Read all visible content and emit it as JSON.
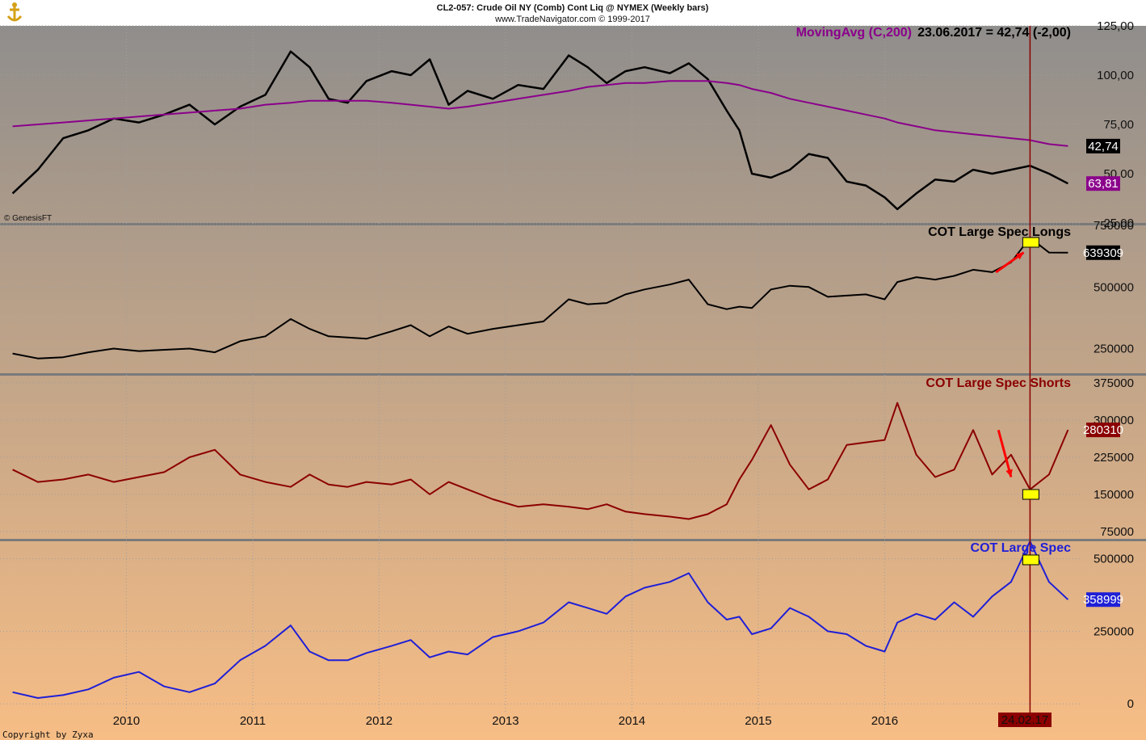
{
  "header": {
    "title": "CL2-057:  Crude Oil NY (Comb) Cont Liq @ NYMEX  (Weekly bars)",
    "subtitle": "www.TradeNavigator.com © 1999-2017"
  },
  "ma_label": "MovingAvg (C,200)",
  "ma_value_text": "23.06.2017 = 42,74 (-2,00)",
  "credit": "© GenesisFT",
  "copyright": "Copyright by Zyxa",
  "vline_date": "24.02.17",
  "colors": {
    "bg_top": "#8c8c8c",
    "bg_bottom": "#f7bd85",
    "price": "#000000",
    "ma": "#8b008b",
    "longs": "#000000",
    "shorts": "#8b0000",
    "net": "#1f1fd6",
    "vline": "#8b0000",
    "arrow": "#ff0000",
    "marker": "#ffff00"
  },
  "chart_data": [
    {
      "type": "line",
      "title": "CL2-057:  Crude Oil NY (Comb) Cont Liq @ NYMEX  (Weekly bars)",
      "subtitle": "www.TradeNavigator.com © 1999-2017",
      "x": [
        2009.1,
        2009.3,
        2009.5,
        2009.7,
        2009.9,
        2010.1,
        2010.3,
        2010.5,
        2010.7,
        2010.9,
        2011.1,
        2011.3,
        2011.45,
        2011.6,
        2011.75,
        2011.9,
        2012.1,
        2012.25,
        2012.4,
        2012.55,
        2012.7,
        2012.9,
        2013.1,
        2013.3,
        2013.5,
        2013.65,
        2013.8,
        2013.95,
        2014.1,
        2014.3,
        2014.45,
        2014.6,
        2014.75,
        2014.85,
        2014.95,
        2015.1,
        2015.25,
        2015.4,
        2015.55,
        2015.7,
        2015.85,
        2016.0,
        2016.1,
        2016.25,
        2016.4,
        2016.55,
        2016.7,
        2016.85,
        2017.0,
        2017.15,
        2017.3,
        2017.45
      ],
      "series": [
        {
          "values": [
            40,
            52,
            68,
            72,
            78,
            76,
            80,
            85,
            75,
            84,
            90,
            112,
            104,
            88,
            86,
            97,
            102,
            100,
            108,
            85,
            92,
            88,
            95,
            93,
            110,
            104,
            96,
            102,
            104,
            101,
            106,
            98,
            82,
            72,
            50,
            48,
            52,
            60,
            58,
            46,
            44,
            38,
            32,
            40,
            47,
            46,
            52,
            50,
            52,
            54,
            50,
            45
          ]
        },
        {
          "values": [
            74,
            75,
            76,
            77,
            78,
            79,
            80,
            81,
            82,
            83,
            85,
            86,
            87,
            87,
            87,
            87,
            86,
            85,
            84,
            83,
            84,
            86,
            88,
            90,
            92,
            94,
            95,
            96,
            96,
            97,
            97,
            97,
            96,
            95,
            93,
            91,
            88,
            86,
            84,
            82,
            80,
            78,
            76,
            74,
            72,
            71,
            70,
            69,
            68,
            67,
            65,
            64
          ]
        }
      ],
      "ylim": [
        25,
        125
      ],
      "yticks": [
        "125,00",
        "100,00",
        "75,00",
        "50,00",
        "25,00"
      ],
      "last_labels": [
        "63,81",
        "42,74"
      ]
    },
    {
      "type": "line",
      "title": "COT Large Spec Longs",
      "x": [
        2009.1,
        2009.3,
        2009.5,
        2009.7,
        2009.9,
        2010.1,
        2010.3,
        2010.5,
        2010.7,
        2010.9,
        2011.1,
        2011.3,
        2011.45,
        2011.6,
        2011.75,
        2011.9,
        2012.1,
        2012.25,
        2012.4,
        2012.55,
        2012.7,
        2012.9,
        2013.1,
        2013.3,
        2013.5,
        2013.65,
        2013.8,
        2013.95,
        2014.1,
        2014.3,
        2014.45,
        2014.6,
        2014.75,
        2014.85,
        2014.95,
        2015.1,
        2015.25,
        2015.4,
        2015.55,
        2015.7,
        2015.85,
        2016.0,
        2016.1,
        2016.25,
        2016.4,
        2016.55,
        2016.7,
        2016.85,
        2017.0,
        2017.15,
        2017.3,
        2017.45
      ],
      "series": [
        {
          "values": [
            230000,
            210000,
            215000,
            235000,
            250000,
            240000,
            245000,
            250000,
            235000,
            280000,
            300000,
            370000,
            330000,
            300000,
            295000,
            290000,
            320000,
            345000,
            300000,
            340000,
            310000,
            330000,
            345000,
            360000,
            450000,
            430000,
            435000,
            470000,
            490000,
            510000,
            530000,
            430000,
            410000,
            420000,
            415000,
            490000,
            505000,
            500000,
            460000,
            465000,
            470000,
            450000,
            520000,
            540000,
            530000,
            545000,
            570000,
            560000,
            600000,
            700000,
            640000,
            639309
          ]
        }
      ],
      "ylim": [
        150000,
        750000
      ],
      "yticks": [
        "750000",
        "500000",
        "250000"
      ],
      "last_labels": [
        "639309"
      ]
    },
    {
      "type": "line",
      "title": "COT Large Spec Shorts",
      "x": [
        2009.1,
        2009.3,
        2009.5,
        2009.7,
        2009.9,
        2010.1,
        2010.3,
        2010.5,
        2010.7,
        2010.9,
        2011.1,
        2011.3,
        2011.45,
        2011.6,
        2011.75,
        2011.9,
        2012.1,
        2012.25,
        2012.4,
        2012.55,
        2012.7,
        2012.9,
        2013.1,
        2013.3,
        2013.5,
        2013.65,
        2013.8,
        2013.95,
        2014.1,
        2014.3,
        2014.45,
        2014.6,
        2014.75,
        2014.85,
        2014.95,
        2015.1,
        2015.25,
        2015.4,
        2015.55,
        2015.7,
        2015.85,
        2016.0,
        2016.1,
        2016.25,
        2016.4,
        2016.55,
        2016.7,
        2016.85,
        2017.0,
        2017.15,
        2017.3,
        2017.45
      ],
      "series": [
        {
          "values": [
            200000,
            175000,
            180000,
            190000,
            175000,
            185000,
            195000,
            225000,
            240000,
            190000,
            175000,
            165000,
            190000,
            170000,
            165000,
            175000,
            170000,
            180000,
            150000,
            175000,
            160000,
            140000,
            125000,
            130000,
            125000,
            120000,
            130000,
            115000,
            110000,
            105000,
            100000,
            110000,
            130000,
            180000,
            220000,
            290000,
            210000,
            160000,
            180000,
            250000,
            255000,
            260000,
            335000,
            230000,
            185000,
            200000,
            280000,
            190000,
            230000,
            160000,
            190000,
            280310
          ]
        }
      ],
      "ylim": [
        60000,
        390000
      ],
      "yticks": [
        "375000",
        "300000",
        "225000",
        "150000",
        "75000"
      ],
      "last_labels": [
        "280310"
      ]
    },
    {
      "type": "line",
      "title": "COT Large Spec",
      "x": [
        2009.1,
        2009.3,
        2009.5,
        2009.7,
        2009.9,
        2010.1,
        2010.3,
        2010.5,
        2010.7,
        2010.9,
        2011.1,
        2011.3,
        2011.45,
        2011.6,
        2011.75,
        2011.9,
        2012.1,
        2012.25,
        2012.4,
        2012.55,
        2012.7,
        2012.9,
        2013.1,
        2013.3,
        2013.5,
        2013.65,
        2013.8,
        2013.95,
        2014.1,
        2014.3,
        2014.45,
        2014.6,
        2014.75,
        2014.85,
        2014.95,
        2015.1,
        2015.25,
        2015.4,
        2015.55,
        2015.7,
        2015.85,
        2016.0,
        2016.1,
        2016.25,
        2016.4,
        2016.55,
        2016.7,
        2016.85,
        2017.0,
        2017.15,
        2017.3,
        2017.45
      ],
      "series": [
        {
          "values": [
            40000,
            20000,
            30000,
            50000,
            90000,
            110000,
            60000,
            40000,
            70000,
            150000,
            200000,
            270000,
            180000,
            150000,
            150000,
            175000,
            200000,
            220000,
            160000,
            180000,
            170000,
            230000,
            250000,
            280000,
            350000,
            330000,
            310000,
            370000,
            400000,
            420000,
            450000,
            350000,
            290000,
            300000,
            240000,
            260000,
            330000,
            300000,
            250000,
            240000,
            200000,
            180000,
            280000,
            310000,
            290000,
            350000,
            300000,
            370000,
            420000,
            560000,
            420000,
            358999
          ]
        }
      ],
      "ylim": [
        -30000,
        560000
      ],
      "yticks": [
        "500000",
        "250000",
        "0"
      ],
      "last_labels": [
        "358999"
      ]
    }
  ],
  "xaxis": {
    "range": [
      2009.0,
      2017.55
    ],
    "ticks": [
      2010,
      2011,
      2012,
      2013,
      2014,
      2015,
      2016
    ],
    "labels": [
      "2010",
      "2011",
      "2012",
      "2013",
      "2014",
      "2015",
      "2016"
    ]
  },
  "vline_x": 2017.15,
  "arrows": [
    {
      "panel": 1,
      "from": [
        2016.88,
        560000
      ],
      "to": [
        2017.1,
        640000
      ]
    },
    {
      "panel": 2,
      "from": [
        2016.9,
        280000
      ],
      "to": [
        2017.0,
        185000
      ]
    }
  ]
}
